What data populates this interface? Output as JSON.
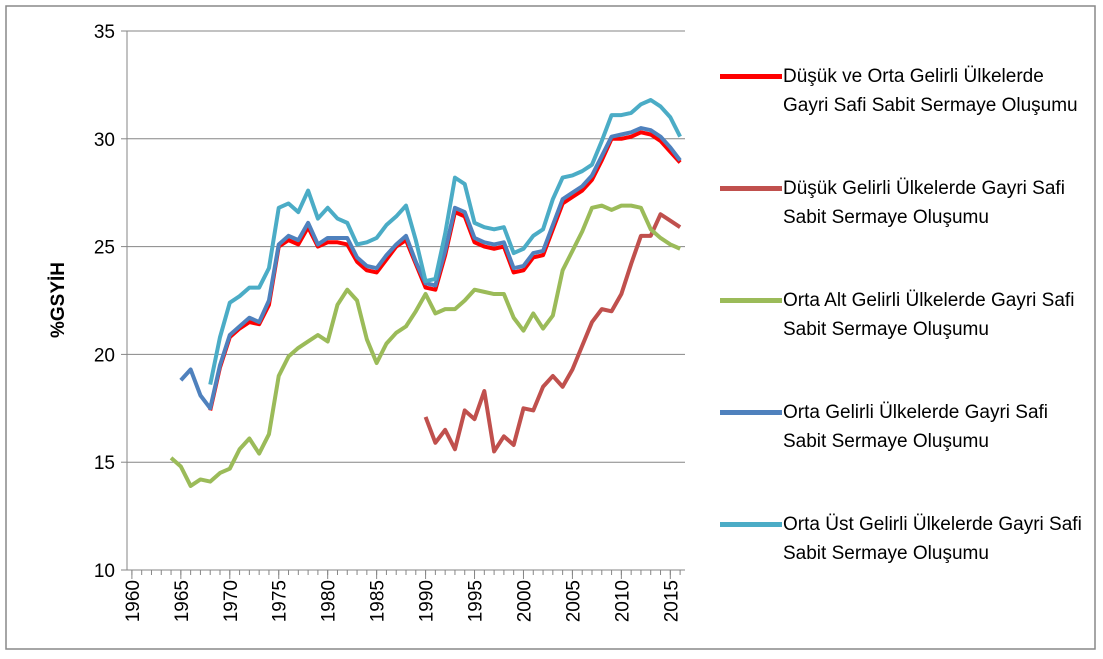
{
  "chart_data": {
    "type": "line",
    "y_label": "%GSYİH",
    "x": [
      1960,
      1961,
      1962,
      1963,
      1964,
      1965,
      1966,
      1967,
      1968,
      1969,
      1970,
      1971,
      1972,
      1973,
      1974,
      1975,
      1976,
      1977,
      1978,
      1979,
      1980,
      1981,
      1982,
      1983,
      1984,
      1985,
      1986,
      1987,
      1988,
      1989,
      1990,
      1991,
      1992,
      1993,
      1994,
      1995,
      1996,
      1997,
      1998,
      1999,
      2000,
      2001,
      2002,
      2003,
      2004,
      2005,
      2006,
      2007,
      2008,
      2009,
      2010,
      2011,
      2012,
      2013,
      2014,
      2015,
      2016
    ],
    "xlim": [
      1959.5,
      2016.5
    ],
    "xticks": [
      1960,
      1965,
      1970,
      1975,
      1980,
      1985,
      1990,
      1995,
      2000,
      2005,
      2010,
      2015
    ],
    "ylim": [
      10,
      35
    ],
    "yticks": [
      10,
      15,
      20,
      25,
      30,
      35
    ],
    "grid": true,
    "series": [
      {
        "name": "Düşük ve Orta Gelirli Ülkelerde Gayri Safi Sabit Sermaye Oluşumu",
        "color": "#ff0000",
        "values": [
          null,
          null,
          null,
          null,
          null,
          null,
          null,
          null,
          17.4,
          19.4,
          20.8,
          21.2,
          21.5,
          21.4,
          22.3,
          25.0,
          25.3,
          25.1,
          25.9,
          25.0,
          25.2,
          25.2,
          25.1,
          24.3,
          23.9,
          23.8,
          24.4,
          25.0,
          25.3,
          24.2,
          23.1,
          23.0,
          24.6,
          26.6,
          26.4,
          25.2,
          25.0,
          24.9,
          25.0,
          23.8,
          23.9,
          24.5,
          24.6,
          25.8,
          27.0,
          27.3,
          27.6,
          28.1,
          29.0,
          30.0,
          30.0,
          30.1,
          30.3,
          30.2,
          29.9,
          29.4,
          28.9
        ]
      },
      {
        "name": "Düşük Gelirli Ülkelerde Gayri Safi Sabit Sermaye Oluşumu",
        "color": "#c0504d",
        "values": [
          null,
          null,
          null,
          null,
          null,
          null,
          null,
          null,
          null,
          null,
          null,
          null,
          null,
          null,
          null,
          null,
          null,
          null,
          null,
          null,
          null,
          null,
          null,
          null,
          null,
          null,
          null,
          null,
          null,
          null,
          17.1,
          15.9,
          16.5,
          15.6,
          17.4,
          17.0,
          18.3,
          15.5,
          16.2,
          15.8,
          17.5,
          17.4,
          18.5,
          19.0,
          18.5,
          19.3,
          20.4,
          21.5,
          22.1,
          22.0,
          22.8,
          24.2,
          25.5,
          25.5,
          26.5,
          26.2,
          25.9
        ]
      },
      {
        "name": "Orta Alt Gelirli Ülkelerde Gayri Safi Sabit Sermaye Oluşumu",
        "color": "#9bbb59",
        "values": [
          null,
          null,
          null,
          null,
          15.2,
          14.8,
          13.9,
          14.2,
          14.1,
          14.5,
          14.7,
          15.6,
          16.1,
          15.4,
          16.3,
          19.0,
          19.9,
          20.3,
          20.6,
          20.9,
          20.6,
          22.3,
          23.0,
          22.5,
          20.7,
          19.6,
          20.5,
          21.0,
          21.3,
          22.0,
          22.8,
          21.9,
          22.1,
          22.1,
          22.5,
          23.0,
          22.9,
          22.8,
          22.8,
          21.7,
          21.1,
          21.9,
          21.2,
          21.8,
          23.9,
          24.8,
          25.7,
          26.8,
          26.9,
          26.7,
          26.9,
          26.9,
          26.8,
          25.8,
          25.4,
          25.1,
          24.9
        ]
      },
      {
        "name": "Orta Gelirli Ülkelerde Gayri Safi Sabit Sermaye Oluşumu",
        "color": "#4f81bd",
        "values": [
          null,
          null,
          null,
          null,
          null,
          18.8,
          19.3,
          18.1,
          17.5,
          19.5,
          20.9,
          21.3,
          21.7,
          21.5,
          22.5,
          25.1,
          25.5,
          25.3,
          26.1,
          25.1,
          25.4,
          25.4,
          25.4,
          24.5,
          24.1,
          24.0,
          24.6,
          25.1,
          25.5,
          24.3,
          23.3,
          23.2,
          24.8,
          26.8,
          26.6,
          25.4,
          25.2,
          25.1,
          25.2,
          24.0,
          24.1,
          24.7,
          24.8,
          26.0,
          27.2,
          27.5,
          27.8,
          28.3,
          29.2,
          30.1,
          30.2,
          30.3,
          30.5,
          30.4,
          30.1,
          29.6,
          29.0
        ]
      },
      {
        "name": "Orta Üst Gelirli Ülkelerde Gayri Safi Sabit Sermaye Oluşumu",
        "color": "#4bacc6",
        "values": [
          null,
          null,
          null,
          null,
          null,
          null,
          null,
          null,
          18.6,
          20.8,
          22.4,
          22.7,
          23.1,
          23.1,
          24.0,
          26.8,
          27.0,
          26.6,
          27.6,
          26.3,
          26.8,
          26.3,
          26.1,
          25.1,
          25.2,
          25.4,
          26.0,
          26.4,
          26.9,
          25.3,
          23.4,
          23.5,
          25.6,
          28.2,
          27.9,
          26.1,
          25.9,
          25.8,
          25.9,
          24.7,
          24.9,
          25.5,
          25.8,
          27.2,
          28.2,
          28.3,
          28.5,
          28.8,
          29.9,
          31.1,
          31.1,
          31.2,
          31.6,
          31.8,
          31.5,
          31.0,
          30.1
        ]
      }
    ]
  }
}
